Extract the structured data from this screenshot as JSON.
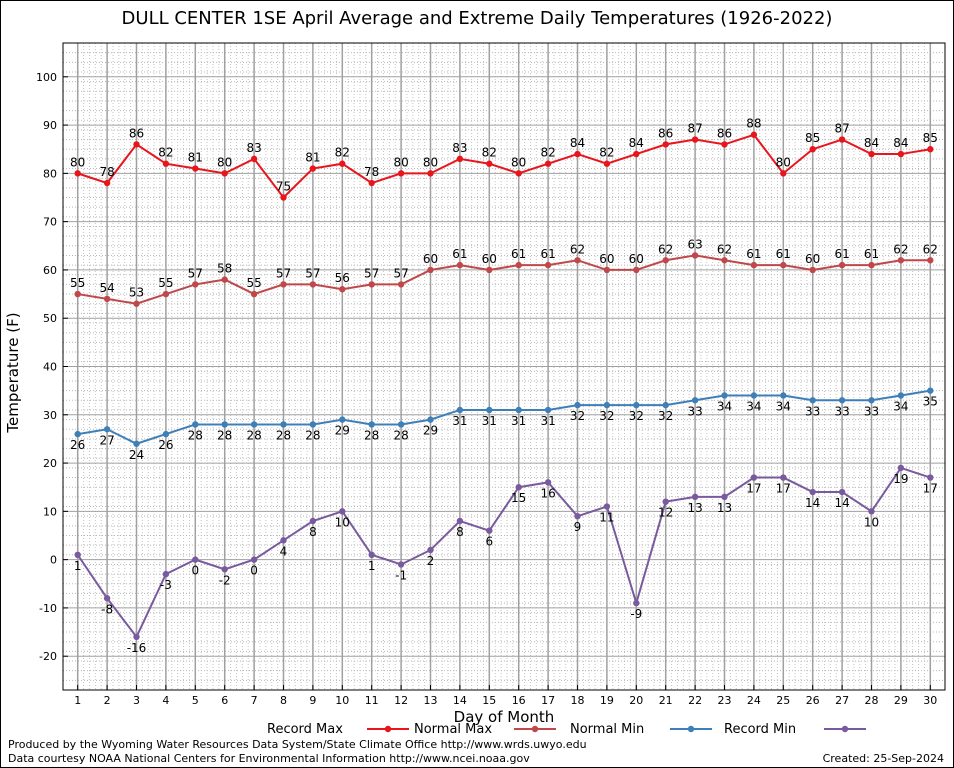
{
  "title": "DULL CENTER 1SE April Average and Extreme Daily Temperatures (1926-2022)",
  "footer": {
    "produced_by": "Produced by the Wyoming Water Resources Data System/State Climate Office http://www.wrds.uwyo.edu",
    "data_courtesy": "Data courtesy NOAA National Centers for Environmental Information http://www.ncei.noaa.gov",
    "created": "Created:  25-Sep-2024"
  },
  "chart_data": {
    "type": "line",
    "title": "DULL CENTER 1SE April Average and Extreme Daily Temperatures (1926-2022)",
    "xlabel": "Day of Month",
    "ylabel": "Temperature (F)",
    "x": [
      1,
      2,
      3,
      4,
      5,
      6,
      7,
      8,
      9,
      10,
      11,
      12,
      13,
      14,
      15,
      16,
      17,
      18,
      19,
      20,
      21,
      22,
      23,
      24,
      25,
      26,
      27,
      28,
      29,
      30
    ],
    "xlim": [
      0.5,
      30.5
    ],
    "ylim": [
      -27,
      107
    ],
    "yticks": [
      -20,
      -10,
      0,
      10,
      20,
      30,
      40,
      50,
      60,
      70,
      80,
      90,
      100
    ],
    "grid": true,
    "legend_position": "bottom",
    "series": [
      {
        "name": "Record Max",
        "color": "#e8161c",
        "label_pos": "above",
        "values": [
          80,
          78,
          86,
          82,
          81,
          80,
          83,
          75,
          81,
          82,
          78,
          80,
          80,
          83,
          82,
          80,
          82,
          84,
          82,
          84,
          86,
          87,
          86,
          88,
          80,
          85,
          87,
          84,
          84,
          85
        ]
      },
      {
        "name": "Normal Max",
        "color": "#c0484a",
        "label_pos": "above",
        "values": [
          55,
          54,
          53,
          55,
          57,
          58,
          55,
          57,
          57,
          56,
          57,
          57,
          60,
          61,
          60,
          61,
          61,
          62,
          60,
          60,
          62,
          63,
          62,
          61,
          61,
          60,
          61,
          61,
          62,
          62
        ]
      },
      {
        "name": "Normal Min",
        "color": "#3f7fb8",
        "label_pos": "below",
        "values": [
          26,
          27,
          24,
          26,
          28,
          28,
          28,
          28,
          28,
          29,
          28,
          28,
          29,
          31,
          31,
          31,
          31,
          32,
          32,
          32,
          32,
          33,
          34,
          34,
          34,
          33,
          33,
          33,
          34,
          35
        ]
      },
      {
        "name": "Record Min",
        "color": "#7a5a9e",
        "label_pos": "below",
        "values": [
          1,
          -8,
          -16,
          -3,
          0,
          -2,
          0,
          4,
          8,
          10,
          1,
          -1,
          2,
          8,
          6,
          15,
          16,
          9,
          11,
          -9,
          12,
          13,
          13,
          17,
          17,
          14,
          14,
          10,
          19,
          17
        ]
      }
    ]
  }
}
